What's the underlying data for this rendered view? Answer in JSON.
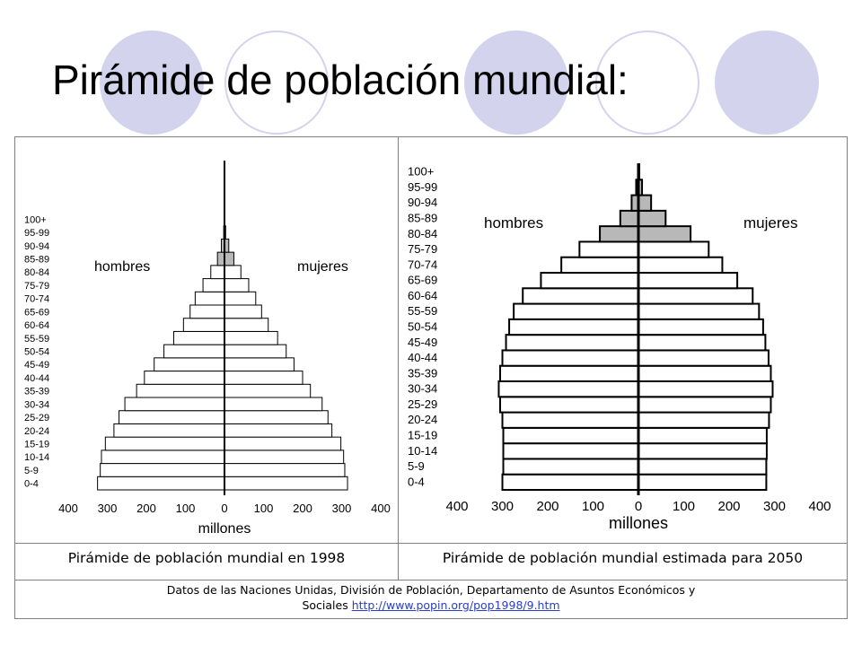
{
  "slide": {
    "title": "Pirámide de población mundial:",
    "caption_left": "Pirámide de población mundial en 1998",
    "caption_right": "Pirámide de población mundial estimada para 2050",
    "source_line1": "Datos de las Naciones Unidas, División de Población, Departamento de Asuntos Económicos y",
    "source_prefix": "Sociales",
    "source_link": "http://www.popin.org/pop1998/9.htm",
    "colors": {
      "circle": "#d3d3ee",
      "bar_fill": "#ffffff",
      "bar_fill_old": "#b8b8b8",
      "link": "#2a3ec8"
    }
  },
  "chart_data": [
    {
      "type": "bar",
      "orientation": "horizontal-pyramid",
      "categories": [
        "0-4",
        "5-9",
        "10-14",
        "15-19",
        "20-24",
        "25-29",
        "30-34",
        "35-39",
        "40-44",
        "45-49",
        "50-54",
        "55-59",
        "60-64",
        "65-69",
        "70-74",
        "75-79",
        "80-84",
        "85-89",
        "90-94",
        "95-99",
        "100+"
      ],
      "series": [
        {
          "name": "hombres",
          "values": [
            325,
            318,
            315,
            305,
            283,
            270,
            255,
            225,
            205,
            180,
            155,
            130,
            105,
            88,
            75,
            55,
            35,
            18,
            8,
            2,
            0
          ]
        },
        {
          "name": "mujeres",
          "values": [
            315,
            308,
            305,
            298,
            275,
            265,
            250,
            220,
            200,
            178,
            158,
            136,
            112,
            95,
            80,
            62,
            42,
            24,
            11,
            3,
            1
          ]
        }
      ],
      "xlabel": "millones",
      "xticks": [
        "400",
        "300",
        "200",
        "100",
        "0",
        "100",
        "200",
        "300",
        "400"
      ],
      "xlim": [
        -400,
        400
      ]
    },
    {
      "type": "bar",
      "orientation": "horizontal-pyramid",
      "categories": [
        "0-4",
        "5-9",
        "10-14",
        "15-19",
        "20-24",
        "25-29",
        "30-34",
        "35-39",
        "40-44",
        "45-49",
        "50-54",
        "55-59",
        "60-64",
        "65-69",
        "70-74",
        "75-79",
        "80-84",
        "85-89",
        "90-94",
        "95-99",
        "100+"
      ],
      "series": [
        {
          "name": "hombres",
          "values": [
            300,
            298,
            298,
            298,
            300,
            305,
            308,
            305,
            300,
            292,
            285,
            275,
            255,
            215,
            170,
            130,
            85,
            40,
            15,
            5,
            1
          ]
        },
        {
          "name": "mujeres",
          "values": [
            282,
            282,
            283,
            283,
            288,
            292,
            296,
            292,
            287,
            280,
            275,
            266,
            252,
            218,
            185,
            155,
            115,
            60,
            28,
            8,
            2
          ]
        }
      ],
      "xlabel": "millones",
      "xticks": [
        "400",
        "300",
        "200",
        "100",
        "0",
        "100",
        "200",
        "300",
        "400"
      ],
      "xlim": [
        -400,
        400
      ]
    }
  ]
}
